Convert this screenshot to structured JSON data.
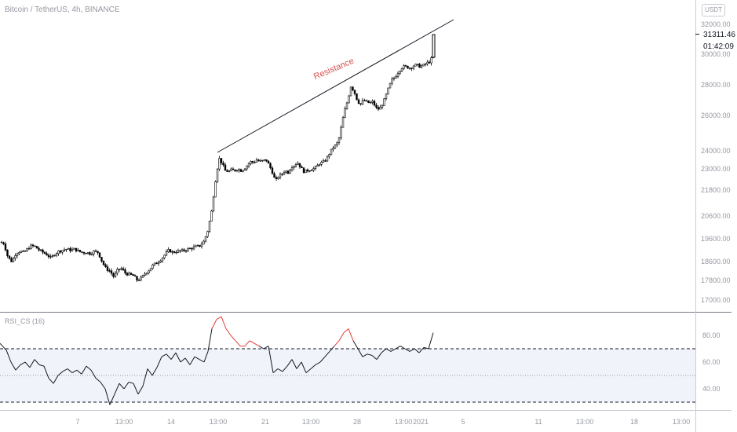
{
  "header": {
    "title": "Bitcoin / TetherUS, 4h, BINANCE",
    "currency_button": "USDT",
    "last_price": "31311.46",
    "countdown": "01:42:09"
  },
  "annotation": {
    "label": "Resistance",
    "color": "#d94f4f"
  },
  "colors": {
    "candle": "#000000",
    "axis_text": "#9598a1",
    "grid_border": "#787b86",
    "rsi_overbought": "#e53935",
    "rsi_band": "#f0f3fa"
  },
  "chart_data": [
    {
      "type": "candlestick",
      "title": "Bitcoin / TetherUS, 4h, BINANCE",
      "x_ticks": [
        "7",
        "13:00",
        "14",
        "13:00",
        "21",
        "13:00",
        "28",
        "13:00",
        "2021",
        "5",
        "11",
        "13:00",
        "18",
        "13:00"
      ],
      "y_ticks": [
        32000,
        30000,
        28000,
        26000,
        24000,
        23000,
        21800,
        20600,
        19600,
        18600,
        17800,
        17000
      ],
      "last_price": 31311.46,
      "close_path": [
        [
          0,
          19450
        ],
        [
          5,
          19400
        ],
        [
          10,
          18800
        ],
        [
          15,
          18600
        ],
        [
          20,
          18950
        ],
        [
          25,
          19050
        ],
        [
          30,
          19000
        ],
        [
          35,
          19150
        ],
        [
          40,
          19300
        ],
        [
          45,
          19250
        ],
        [
          50,
          19100
        ],
        [
          55,
          19000
        ],
        [
          60,
          18900
        ],
        [
          65,
          18750
        ],
        [
          70,
          18950
        ],
        [
          75,
          19050
        ],
        [
          80,
          19100
        ],
        [
          85,
          19150
        ],
        [
          90,
          19100
        ],
        [
          95,
          19150
        ],
        [
          100,
          19050
        ],
        [
          105,
          19000
        ],
        [
          110,
          19000
        ],
        [
          115,
          18950
        ],
        [
          120,
          19050
        ],
        [
          125,
          19000
        ],
        [
          130,
          18600
        ],
        [
          135,
          18300
        ],
        [
          140,
          18200
        ],
        [
          145,
          17950
        ],
        [
          150,
          18250
        ],
        [
          155,
          18300
        ],
        [
          160,
          18100
        ],
        [
          165,
          18050
        ],
        [
          170,
          18000
        ],
        [
          175,
          17800
        ],
        [
          180,
          17900
        ],
        [
          185,
          18100
        ],
        [
          190,
          18250
        ],
        [
          195,
          18450
        ],
        [
          200,
          18550
        ],
        [
          205,
          18700
        ],
        [
          210,
          18900
        ],
        [
          215,
          19100
        ],
        [
          220,
          19000
        ],
        [
          225,
          19050
        ],
        [
          230,
          19050
        ],
        [
          235,
          19100
        ],
        [
          240,
          19150
        ],
        [
          245,
          19200
        ],
        [
          250,
          19250
        ],
        [
          255,
          19300
        ],
        [
          260,
          19500
        ],
        [
          265,
          20000
        ],
        [
          270,
          20900
        ],
        [
          275,
          22500
        ],
        [
          279,
          23600
        ],
        [
          283,
          23300
        ],
        [
          287,
          22900
        ],
        [
          291,
          22850
        ],
        [
          295,
          22950
        ],
        [
          299,
          22900
        ],
        [
          303,
          23000
        ],
        [
          307,
          22900
        ],
        [
          311,
          23000
        ],
        [
          315,
          23200
        ],
        [
          319,
          23400
        ],
        [
          323,
          23350
        ],
        [
          327,
          23500
        ],
        [
          331,
          23400
        ],
        [
          335,
          23450
        ],
        [
          339,
          23500
        ],
        [
          343,
          23200
        ],
        [
          347,
          22800
        ],
        [
          351,
          22300
        ],
        [
          355,
          22600
        ],
        [
          359,
          22700
        ],
        [
          363,
          22900
        ],
        [
          367,
          22800
        ],
        [
          371,
          23100
        ],
        [
          375,
          23200
        ],
        [
          379,
          23350
        ],
        [
          383,
          23100
        ],
        [
          387,
          22850
        ],
        [
          391,
          22900
        ],
        [
          395,
          22950
        ],
        [
          399,
          23000
        ],
        [
          403,
          23100
        ],
        [
          407,
          23300
        ],
        [
          411,
          23350
        ],
        [
          415,
          23500
        ],
        [
          419,
          23800
        ],
        [
          423,
          24100
        ],
        [
          427,
          24300
        ],
        [
          431,
          24500
        ],
        [
          435,
          25400
        ],
        [
          439,
          26300
        ],
        [
          443,
          27000
        ],
        [
          447,
          27900
        ],
        [
          451,
          27600
        ],
        [
          455,
          27000
        ],
        [
          459,
          26700
        ],
        [
          463,
          27000
        ],
        [
          467,
          26900
        ],
        [
          471,
          26800
        ],
        [
          475,
          26900
        ],
        [
          479,
          26500
        ],
        [
          483,
          26400
        ],
        [
          487,
          26700
        ],
        [
          491,
          27200
        ],
        [
          495,
          27800
        ],
        [
          499,
          28300
        ],
        [
          503,
          28500
        ],
        [
          507,
          28800
        ],
        [
          511,
          29100
        ],
        [
          515,
          29200
        ],
        [
          519,
          29150
        ],
        [
          523,
          29100
        ],
        [
          527,
          29250
        ],
        [
          531,
          29300
        ],
        [
          535,
          29200
        ],
        [
          539,
          29250
        ],
        [
          543,
          29400
        ],
        [
          547,
          29500
        ],
        [
          551,
          29800
        ],
        [
          555,
          31311
        ]
      ]
    },
    {
      "type": "line",
      "title": "RSI_CS (16)",
      "y_ticks": [
        80,
        60,
        40
      ],
      "upper_band": 70,
      "lower_band": 30,
      "mid_line": 50,
      "x_ticks": [
        "7",
        "13:00",
        "14",
        "13:00",
        "21",
        "13:00",
        "28",
        "13:00",
        "2021",
        "5",
        "11",
        "13:00",
        "18",
        "13:00"
      ],
      "series": [
        {
          "values": [
            [
              0,
              74
            ],
            [
              8,
              69
            ],
            [
              14,
              60
            ],
            [
              20,
              54
            ],
            [
              26,
              58
            ],
            [
              32,
              60
            ],
            [
              38,
              56
            ],
            [
              44,
              62
            ],
            [
              50,
              58
            ],
            [
              56,
              57
            ],
            [
              62,
              48
            ],
            [
              68,
              44
            ],
            [
              74,
              50
            ],
            [
              80,
              53
            ],
            [
              86,
              55
            ],
            [
              92,
              52
            ],
            [
              98,
              54
            ],
            [
              104,
              51
            ],
            [
              110,
              57
            ],
            [
              116,
              54
            ],
            [
              122,
              48
            ],
            [
              128,
              45
            ],
            [
              134,
              40
            ],
            [
              140,
              28
            ],
            [
              146,
              36
            ],
            [
              152,
              44
            ],
            [
              158,
              40
            ],
            [
              164,
              45
            ],
            [
              170,
              44
            ],
            [
              176,
              36
            ],
            [
              182,
              42
            ],
            [
              188,
              55
            ],
            [
              194,
              50
            ],
            [
              200,
              56
            ],
            [
              206,
              64
            ],
            [
              212,
              66
            ],
            [
              218,
              62
            ],
            [
              224,
              67
            ],
            [
              230,
              60
            ],
            [
              236,
              63
            ],
            [
              242,
              58
            ],
            [
              248,
              64
            ],
            [
              254,
              62
            ],
            [
              260,
              60
            ],
            [
              265,
              68
            ],
            [
              270,
              85
            ],
            [
              276,
              92
            ],
            [
              282,
              94
            ],
            [
              288,
              85
            ],
            [
              294,
              80
            ],
            [
              300,
              76
            ],
            [
              306,
              72
            ],
            [
              312,
              72
            ],
            [
              318,
              76
            ],
            [
              324,
              74
            ],
            [
              330,
              72
            ],
            [
              336,
              70
            ],
            [
              342,
              72
            ],
            [
              348,
              52
            ],
            [
              354,
              55
            ],
            [
              360,
              53
            ],
            [
              366,
              57
            ],
            [
              372,
              62
            ],
            [
              378,
              55
            ],
            [
              384,
              60
            ],
            [
              390,
              52
            ],
            [
              396,
              55
            ],
            [
              402,
              58
            ],
            [
              408,
              60
            ],
            [
              414,
              64
            ],
            [
              420,
              68
            ],
            [
              426,
              72
            ],
            [
              432,
              76
            ],
            [
              438,
              82
            ],
            [
              444,
              85
            ],
            [
              450,
              76
            ],
            [
              456,
              70
            ],
            [
              462,
              64
            ],
            [
              468,
              66
            ],
            [
              474,
              65
            ],
            [
              480,
              62
            ],
            [
              486,
              67
            ],
            [
              492,
              70
            ],
            [
              498,
              68
            ],
            [
              504,
              70
            ],
            [
              510,
              72
            ],
            [
              516,
              70
            ],
            [
              522,
              68
            ],
            [
              528,
              70
            ],
            [
              534,
              67
            ],
            [
              540,
              71
            ],
            [
              546,
              70
            ],
            [
              552,
              82
            ]
          ]
        }
      ]
    }
  ]
}
